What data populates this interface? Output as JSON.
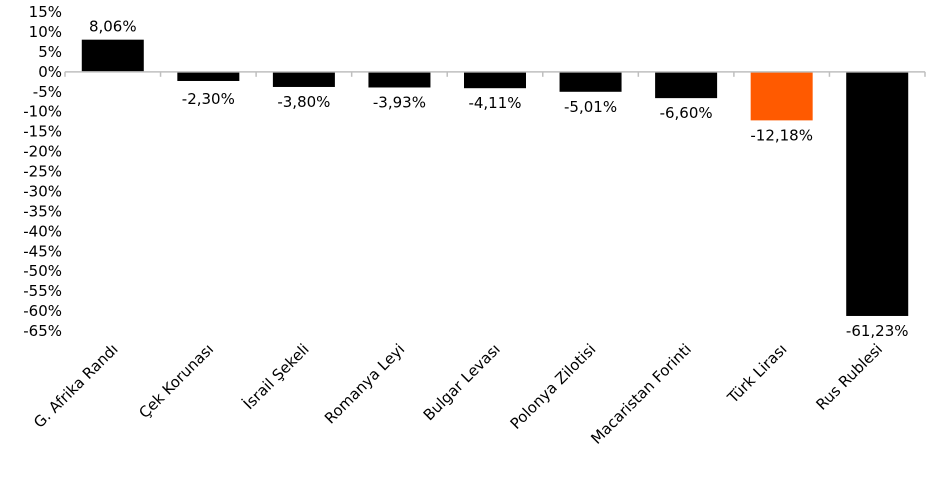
{
  "chart_data": {
    "type": "bar",
    "categories": [
      "G. Afrika Randı",
      "Çek Korunası",
      "İsrail Şekeli",
      "Romanya Leyi",
      "Bulgar Levası",
      "Polonya Zilotisi",
      "Macaristan Forinti",
      "Türk Lirası",
      "Rus Rublesi"
    ],
    "values": [
      8.06,
      -2.3,
      -3.8,
      -3.93,
      -4.11,
      -5.01,
      -6.6,
      -12.18,
      -61.23
    ],
    "data_labels": [
      "8,06%",
      "-2,30%",
      "-3,80%",
      "-3,93%",
      "-4,11%",
      "-5,01%",
      "-6,60%",
      "-12,18%",
      "-61,23%"
    ],
    "ytick_values": [
      15,
      10,
      5,
      0,
      -5,
      -10,
      -15,
      -20,
      -25,
      -30,
      -35,
      -40,
      -45,
      -50,
      -55,
      -60,
      -65
    ],
    "ytick_labels": [
      "15%",
      "10%",
      "5%",
      "0%",
      "-5%",
      "-10%",
      "-15%",
      "-20%",
      "-25%",
      "-30%",
      "-35%",
      "-40%",
      "-45%",
      "-50%",
      "-55%",
      "-60%",
      "-65%"
    ],
    "ylim": [
      -65,
      15
    ],
    "grid": false,
    "colors": {
      "default": "#000000",
      "highlight": "#FF5A00",
      "axis": "#BFBFBF"
    },
    "highlight_category": "Türk Lirası",
    "title": "",
    "xlabel": "",
    "ylabel": ""
  }
}
